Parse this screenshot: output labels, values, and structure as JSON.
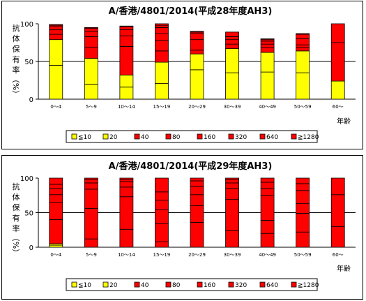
{
  "chart_data": [
    {
      "type": "bar",
      "stacked": true,
      "title": "A/香港/4801/2014(平成28年度AH3)",
      "ylabel": [
        "抗",
        "体",
        "保",
        "有",
        "率",
        "（%）"
      ],
      "xlabel": "年齢",
      "ylim": [
        0,
        100
      ],
      "yticks": [
        0,
        50,
        100
      ],
      "gridlines": [
        50
      ],
      "categories": [
        "0～4",
        "5～9",
        "10～14",
        "15～19",
        "20～29",
        "30～39",
        "40～49",
        "50～59",
        "60～"
      ],
      "series": [
        {
          "name": "≦10",
          "color": "#ffff00",
          "values": [
            45,
            20,
            16,
            21,
            39,
            35,
            36,
            35,
            24
          ]
        },
        {
          "name": "20",
          "color": "#ffff00",
          "values": [
            34,
            34,
            16,
            28,
            21,
            32,
            26,
            29,
            0
          ]
        },
        {
          "name": "40",
          "color": "#ff0000",
          "values": [
            7,
            15,
            38,
            15,
            5,
            6,
            6,
            4,
            51
          ]
        },
        {
          "name": "80",
          "color": "#ff0000",
          "values": [
            6,
            14,
            14,
            14,
            14,
            6,
            5,
            4,
            25
          ]
        },
        {
          "name": "160",
          "color": "#ff0000",
          "values": [
            4,
            7,
            8,
            9,
            8,
            4,
            4,
            8,
            0
          ]
        },
        {
          "name": "320",
          "color": "#ff0000",
          "values": [
            2,
            4,
            4,
            8,
            2,
            6,
            2,
            6,
            0
          ]
        },
        {
          "name": "640",
          "color": "#ff0000",
          "values": [
            1,
            1,
            1,
            3,
            1,
            0,
            1,
            1,
            0
          ]
        },
        {
          "name": "≧1280",
          "color": "#ff0000",
          "values": [
            0,
            0,
            0,
            2,
            0,
            0,
            0,
            0,
            0
          ]
        }
      ],
      "legend_position": "bottom"
    },
    {
      "type": "bar",
      "stacked": true,
      "title": "A/香港/4801/2014(平成29年度AH3)",
      "ylabel": [
        "抗",
        "体",
        "保",
        "有",
        "率",
        "（%）"
      ],
      "xlabel": "年齢",
      "ylim": [
        0,
        100
      ],
      "yticks": [
        0,
        50,
        100
      ],
      "gridlines": [
        50
      ],
      "categories": [
        "0～4",
        "5～9",
        "10～14",
        "15～19",
        "20～29",
        "30～39",
        "40～49",
        "50～59",
        "60～"
      ],
      "series": [
        {
          "name": "≦10",
          "color": "#ffff00",
          "values": [
            3,
            0,
            0,
            0,
            0,
            0,
            0,
            0,
            0
          ]
        },
        {
          "name": "20",
          "color": "#ffff00",
          "values": [
            2,
            0,
            0,
            0,
            0,
            0,
            0,
            0,
            0
          ]
        },
        {
          "name": "40",
          "color": "#ff0000",
          "values": [
            35,
            12,
            26,
            8,
            36,
            24,
            20,
            22,
            30
          ]
        },
        {
          "name": "80",
          "color": "#ff0000",
          "values": [
            25,
            44,
            47,
            26,
            24,
            45,
            19,
            27,
            46
          ]
        },
        {
          "name": "160",
          "color": "#ff0000",
          "values": [
            11,
            28,
            14,
            20,
            16,
            16,
            36,
            14,
            24
          ]
        },
        {
          "name": "320",
          "color": "#ff0000",
          "values": [
            9,
            9,
            8,
            14,
            12,
            8,
            10,
            19,
            0
          ]
        },
        {
          "name": "640",
          "color": "#ff0000",
          "values": [
            6,
            5,
            3,
            12,
            8,
            5,
            9,
            10,
            0
          ]
        },
        {
          "name": "≧1280",
          "color": "#ff0000",
          "values": [
            9,
            2,
            2,
            20,
            4,
            2,
            6,
            8,
            0
          ]
        }
      ],
      "legend_position": "bottom"
    }
  ]
}
